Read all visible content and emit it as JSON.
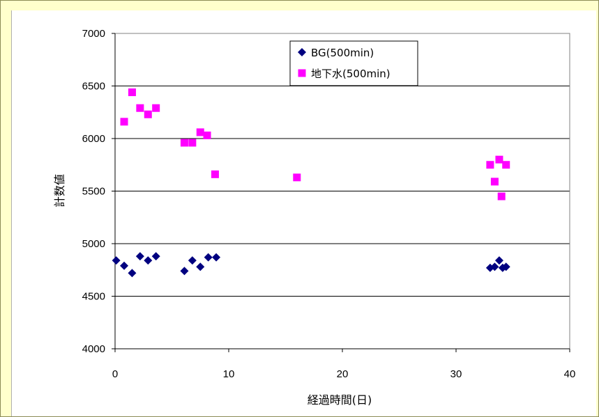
{
  "chart_data": {
    "type": "scatter",
    "xlabel": "経過時間(日)",
    "ylabel": "計数値",
    "xlim": [
      0,
      40
    ],
    "ylim": [
      4000,
      7000
    ],
    "x_ticks": [
      0,
      10,
      20,
      30,
      40
    ],
    "y_ticks": [
      4000,
      4500,
      5000,
      5500,
      6000,
      6500,
      7000
    ],
    "grid": "horizontal",
    "legend_position": "top-center",
    "series": [
      {
        "name": "BG(500min)",
        "marker": "diamond",
        "color": "#000080",
        "points": [
          [
            0.1,
            4840
          ],
          [
            0.8,
            4790
          ],
          [
            1.5,
            4720
          ],
          [
            2.2,
            4880
          ],
          [
            2.9,
            4840
          ],
          [
            3.6,
            4880
          ],
          [
            6.1,
            4740
          ],
          [
            6.8,
            4840
          ],
          [
            7.5,
            4780
          ],
          [
            8.2,
            4870
          ],
          [
            8.9,
            4870
          ],
          [
            33.0,
            4770
          ],
          [
            33.4,
            4780
          ],
          [
            33.8,
            4840
          ],
          [
            34.1,
            4770
          ],
          [
            34.4,
            4780
          ]
        ]
      },
      {
        "name": "地下水(500min)",
        "marker": "square",
        "color": "#ff00ff",
        "points": [
          [
            0.8,
            6160
          ],
          [
            1.5,
            6440
          ],
          [
            2.2,
            6290
          ],
          [
            2.9,
            6230
          ],
          [
            3.6,
            6290
          ],
          [
            6.1,
            5960
          ],
          [
            6.8,
            5960
          ],
          [
            7.5,
            6060
          ],
          [
            8.1,
            6030
          ],
          [
            8.8,
            5660
          ],
          [
            16.0,
            5630
          ],
          [
            33.0,
            5750
          ],
          [
            33.4,
            5590
          ],
          [
            33.8,
            5800
          ],
          [
            34.0,
            5450
          ],
          [
            34.4,
            5750
          ]
        ]
      }
    ]
  }
}
